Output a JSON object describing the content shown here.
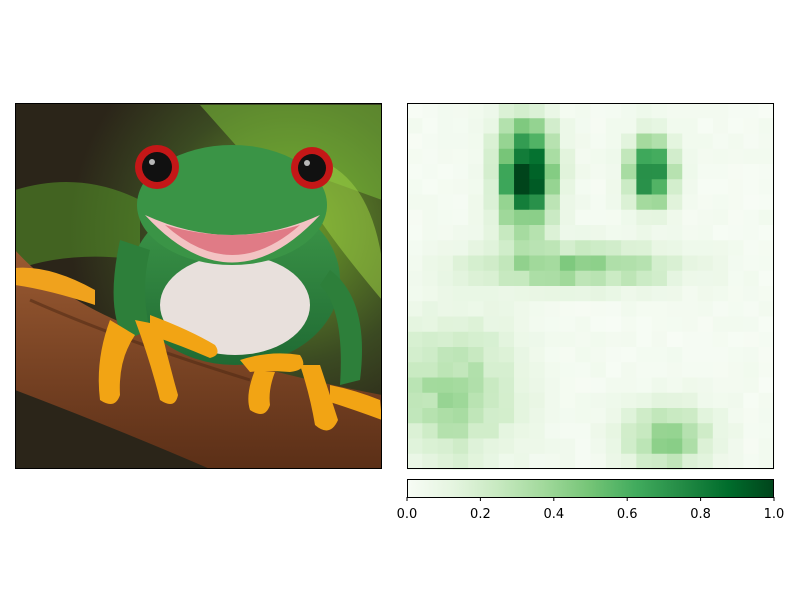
{
  "chart_data": [
    {
      "type": "image",
      "description_panel": "photo",
      "axes": "off"
    },
    {
      "type": "heatmap",
      "colormap": "Greens",
      "vmin": 0.0,
      "vmax": 1.0,
      "colorbar": {
        "orientation": "horizontal",
        "placement": "bottom",
        "ticks": [
          0.0,
          0.2,
          0.4,
          0.6,
          0.8,
          1.0
        ],
        "tick_labels": [
          "0.0",
          "0.2",
          "0.4",
          "0.6",
          "0.8",
          "1.0"
        ]
      },
      "grid_rows": 24,
      "grid_cols": 24,
      "hotspots": [
        {
          "region": "left-eye",
          "peak": 1.0
        },
        {
          "region": "right-eye",
          "peak": 0.9
        },
        {
          "region": "mouth-line",
          "peak": 0.45
        },
        {
          "region": "lower-left",
          "peak": 0.35
        },
        {
          "region": "lower-right",
          "peak": 0.4
        }
      ]
    }
  ]
}
